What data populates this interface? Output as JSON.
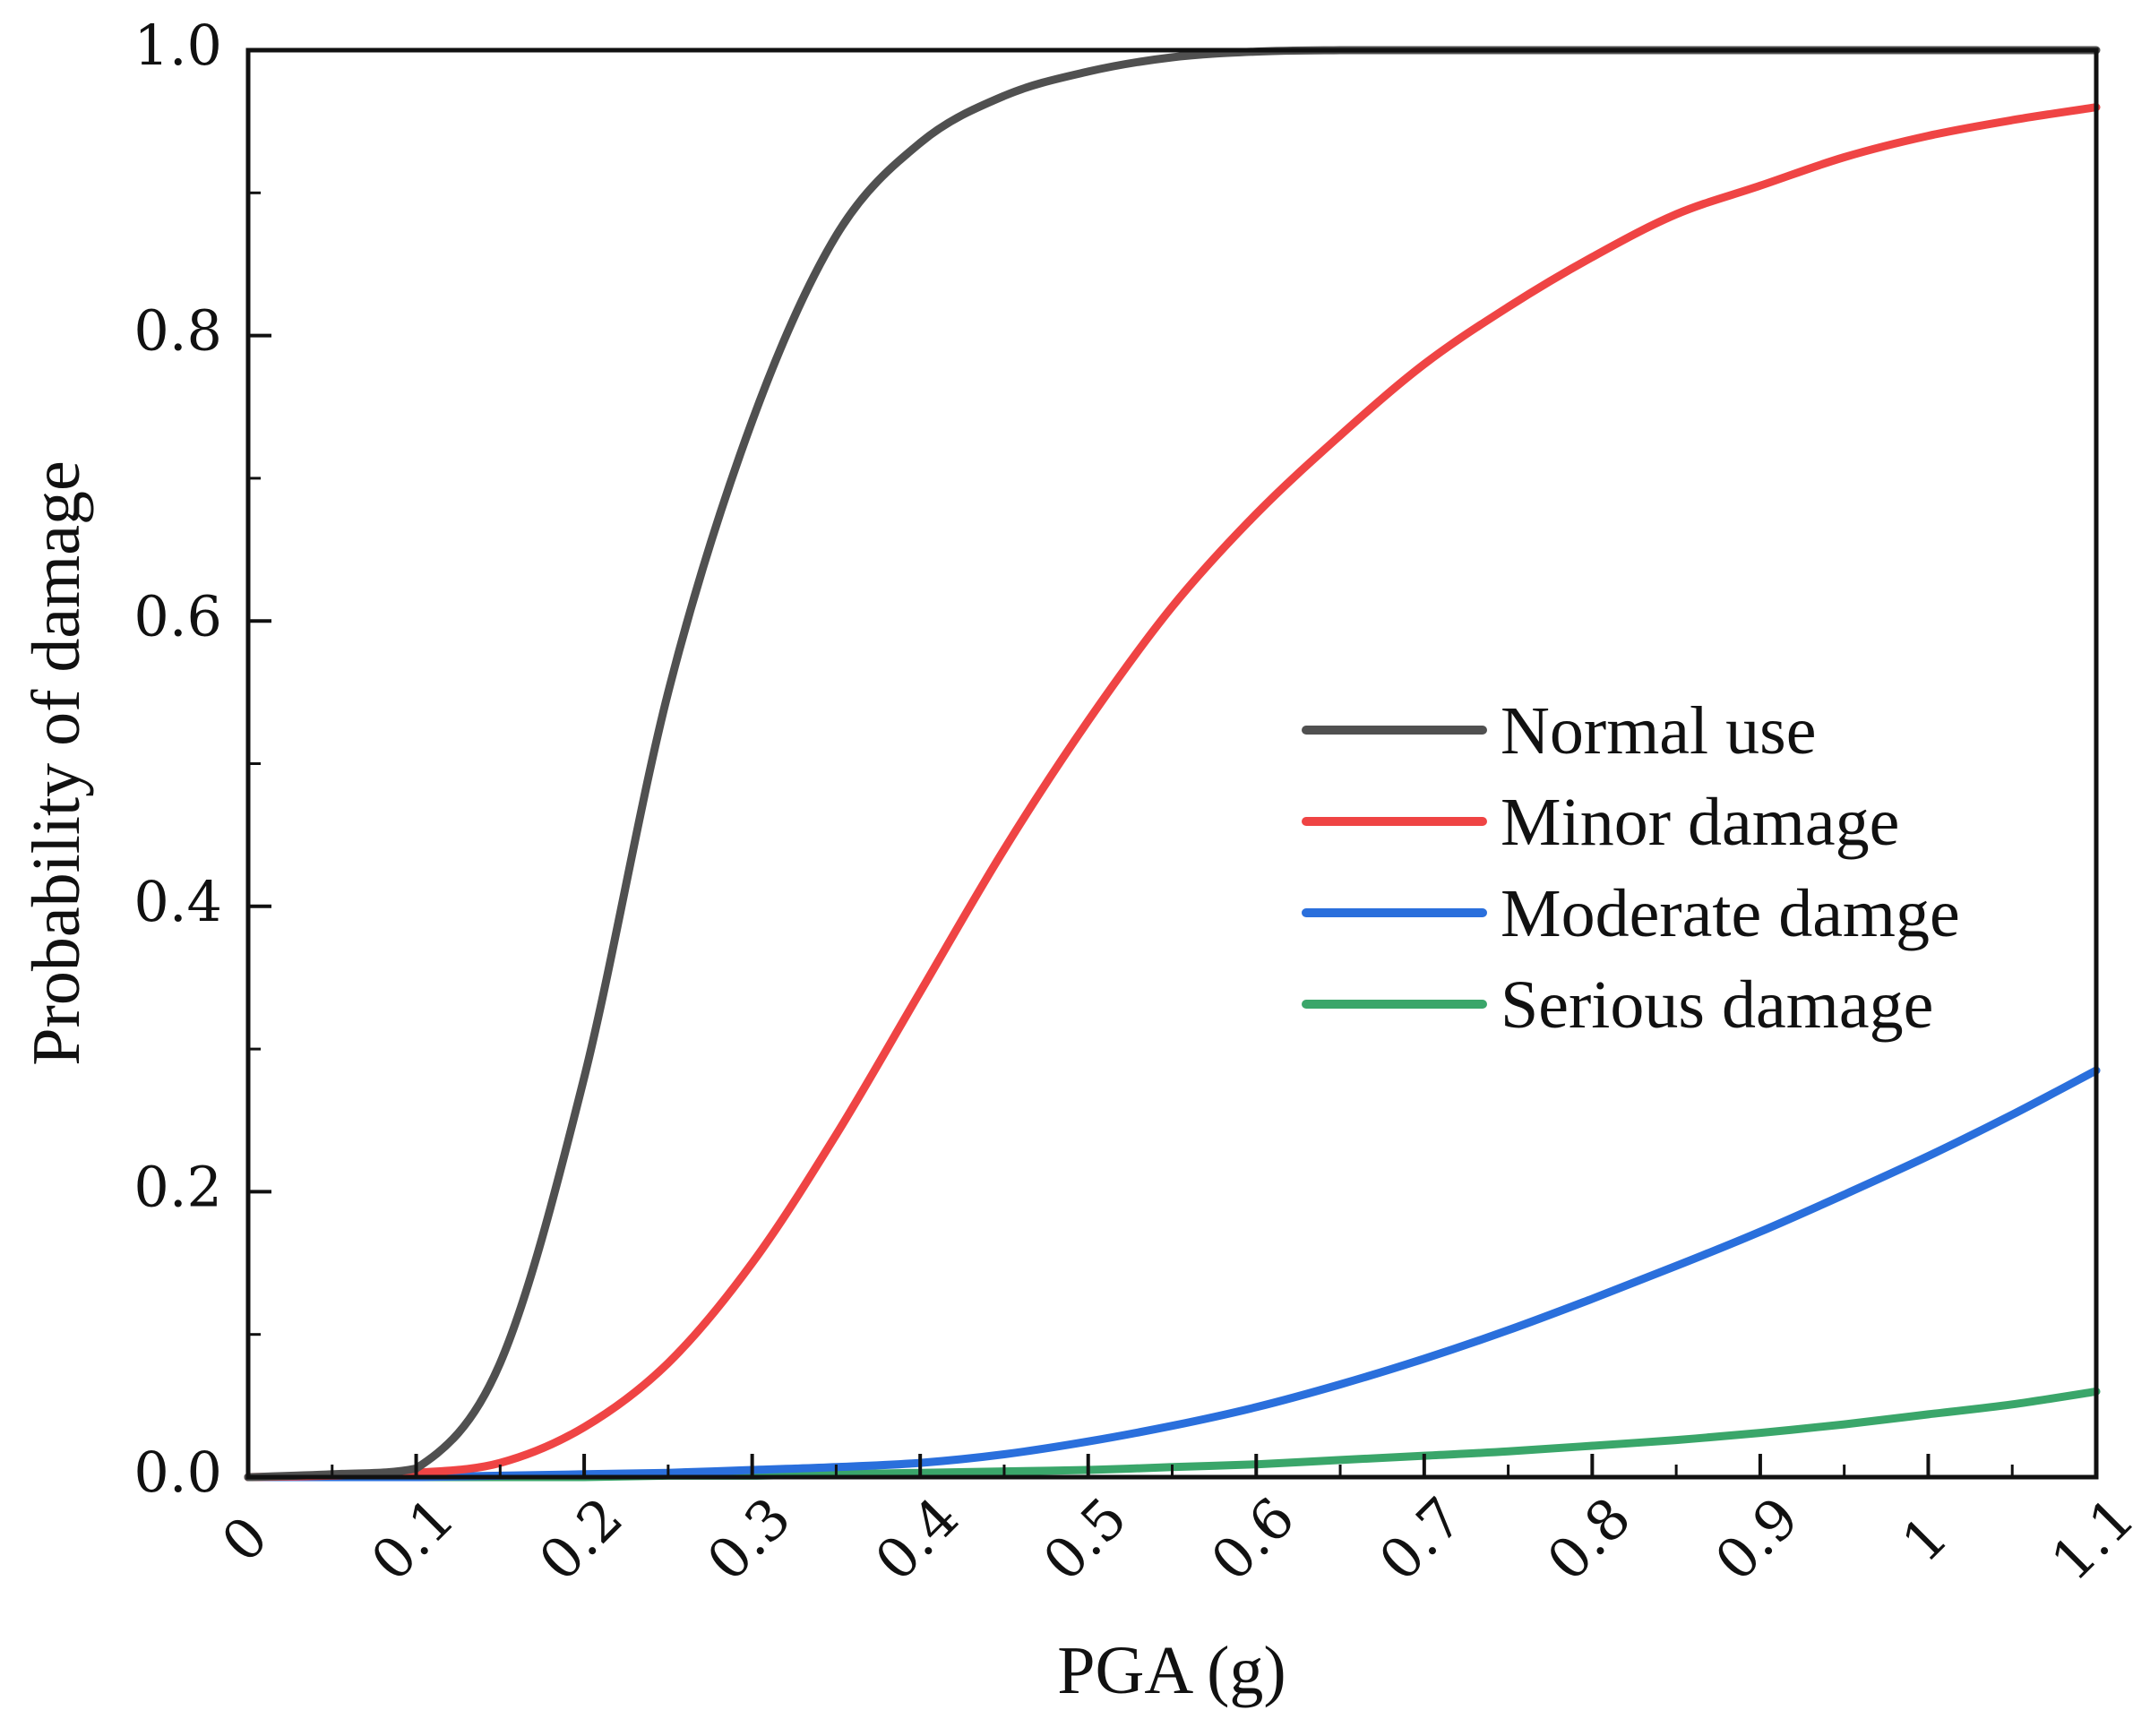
{
  "chart_data": {
    "type": "line",
    "title": "",
    "xlabel": "PGA (g)",
    "ylabel": "Probability of damage",
    "xlim": [
      0,
      1.1
    ],
    "ylim": [
      0,
      1.0
    ],
    "grid": false,
    "legend_position": "center-right",
    "x_ticks": [
      {
        "value": 0,
        "label": "0"
      },
      {
        "value": 0.1,
        "label": "0.1"
      },
      {
        "value": 0.2,
        "label": "0.2"
      },
      {
        "value": 0.3,
        "label": "0.3"
      },
      {
        "value": 0.4,
        "label": "0.4"
      },
      {
        "value": 0.5,
        "label": "0.5"
      },
      {
        "value": 0.6,
        "label": "0.6"
      },
      {
        "value": 0.7,
        "label": "0.7"
      },
      {
        "value": 0.8,
        "label": "0.8"
      },
      {
        "value": 0.9,
        "label": "0.9"
      },
      {
        "value": 1.0,
        "label": "1"
      },
      {
        "value": 1.1,
        "label": "1.1"
      }
    ],
    "y_ticks": [
      {
        "value": 0.0,
        "label": "0.0"
      },
      {
        "value": 0.2,
        "label": "0.2"
      },
      {
        "value": 0.4,
        "label": "0.4"
      },
      {
        "value": 0.6,
        "label": "0.6"
      },
      {
        "value": 0.8,
        "label": "0.8"
      },
      {
        "value": 1.0,
        "label": "1.0"
      }
    ],
    "x": [
      0,
      0.05,
      0.1,
      0.15,
      0.2,
      0.25,
      0.3,
      0.35,
      0.4,
      0.45,
      0.5,
      0.55,
      0.6,
      0.65,
      0.7,
      0.75,
      0.8,
      0.85,
      0.9,
      0.95,
      1.0,
      1.05,
      1.1
    ],
    "series": [
      {
        "name": "Normal use",
        "color": "#505050",
        "values": [
          0.0,
          0.002,
          0.006,
          0.08,
          0.28,
          0.55,
          0.74,
          0.87,
          0.935,
          0.968,
          0.985,
          0.995,
          0.999,
          1.0,
          1.0,
          1.0,
          1.0,
          1.0,
          1.0,
          1.0,
          1.0,
          1.0,
          1.0
        ]
      },
      {
        "name": "Minor damage",
        "color": "#ef4444",
        "values": [
          0.0,
          0.001,
          0.003,
          0.01,
          0.035,
          0.08,
          0.15,
          0.24,
          0.34,
          0.44,
          0.53,
          0.61,
          0.675,
          0.73,
          0.78,
          0.82,
          0.855,
          0.885,
          0.905,
          0.925,
          0.94,
          0.951,
          0.96
        ]
      },
      {
        "name": "Moderate damge",
        "color": "#2a6fdc",
        "values": [
          0.0,
          0.0,
          0.0,
          0.001,
          0.002,
          0.003,
          0.005,
          0.007,
          0.01,
          0.016,
          0.025,
          0.036,
          0.049,
          0.065,
          0.083,
          0.103,
          0.125,
          0.148,
          0.172,
          0.198,
          0.225,
          0.254,
          0.285
        ]
      },
      {
        "name": "Serious damage",
        "color": "#3aa66a",
        "values": [
          0.0,
          0.0,
          0.0,
          0.0,
          0.0,
          0.001,
          0.001,
          0.002,
          0.003,
          0.004,
          0.005,
          0.007,
          0.009,
          0.012,
          0.015,
          0.018,
          0.022,
          0.026,
          0.031,
          0.037,
          0.044,
          0.051,
          0.06
        ]
      }
    ]
  }
}
